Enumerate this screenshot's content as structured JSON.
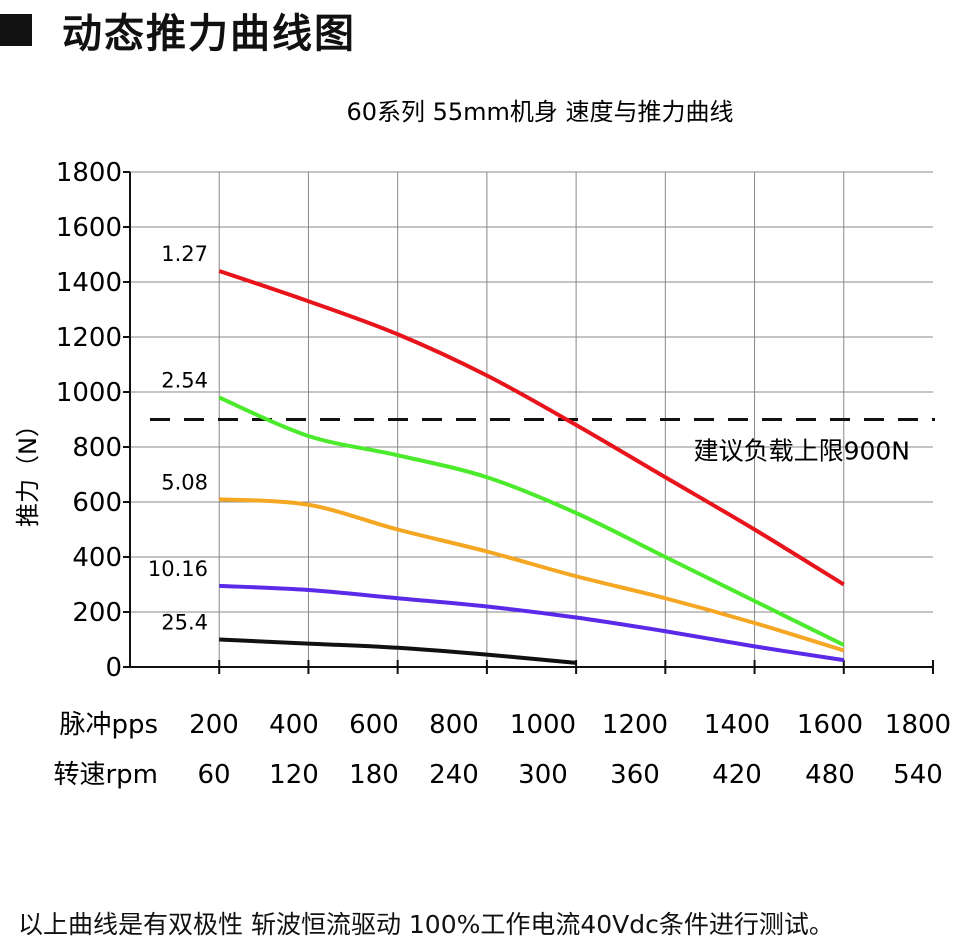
{
  "heading": {
    "title": "动态推力曲线图",
    "marker_icon": "black-square-icon"
  },
  "chart_data": {
    "type": "line",
    "title": "60系列 55mm机身 速度与推力曲线",
    "ylabel": "推力（N）",
    "ylim": [
      0,
      1800
    ],
    "yticks": [
      "0",
      "200",
      "400",
      "600",
      "800",
      "1000",
      "1200",
      "1400",
      "1600",
      "1800"
    ],
    "xlim": [
      0,
      1800
    ],
    "x_axes": [
      {
        "label": "脉冲pps",
        "ticks": [
          "200",
          "400",
          "600",
          "800",
          "1000",
          "1200",
          "1400",
          "1600",
          "1800"
        ]
      },
      {
        "label": "转速rpm",
        "ticks": [
          "60",
          "120",
          "180",
          "240",
          "300",
          "360",
          "420",
          "480",
          "540"
        ]
      }
    ],
    "grid": true,
    "reference_line": {
      "value": 900,
      "label": "建议负载上限900N",
      "style": "dashed",
      "color": "#111111"
    },
    "series": [
      {
        "name": "1.27",
        "color": "#e8141b",
        "x": [
          200,
          400,
          600,
          800,
          1000,
          1200,
          1400,
          1600
        ],
        "y": [
          1440,
          1330,
          1210,
          1060,
          880,
          690,
          500,
          300
        ]
      },
      {
        "name": "2.54",
        "color": "#4cea2c",
        "x": [
          200,
          400,
          600,
          800,
          1000,
          1200,
          1400,
          1600
        ],
        "y": [
          980,
          840,
          770,
          690,
          560,
          400,
          240,
          80
        ]
      },
      {
        "name": "5.08",
        "color": "#f5a623",
        "x": [
          200,
          400,
          600,
          800,
          1000,
          1200,
          1400,
          1600
        ],
        "y": [
          610,
          590,
          500,
          420,
          330,
          250,
          160,
          60
        ]
      },
      {
        "name": "10.16",
        "color": "#5a2ae8",
        "x": [
          200,
          400,
          600,
          800,
          1000,
          1200,
          1400,
          1600
        ],
        "y": [
          295,
          280,
          250,
          220,
          180,
          130,
          75,
          25
        ]
      },
      {
        "name": "25.4",
        "color": "#111111",
        "x": [
          200,
          400,
          600,
          800,
          1000
        ],
        "y": [
          100,
          85,
          70,
          45,
          15
        ]
      }
    ]
  },
  "footnote": "以上曲线是有双极性 斩波恒流驱动 100%工作电流40Vdc条件进行测试。"
}
